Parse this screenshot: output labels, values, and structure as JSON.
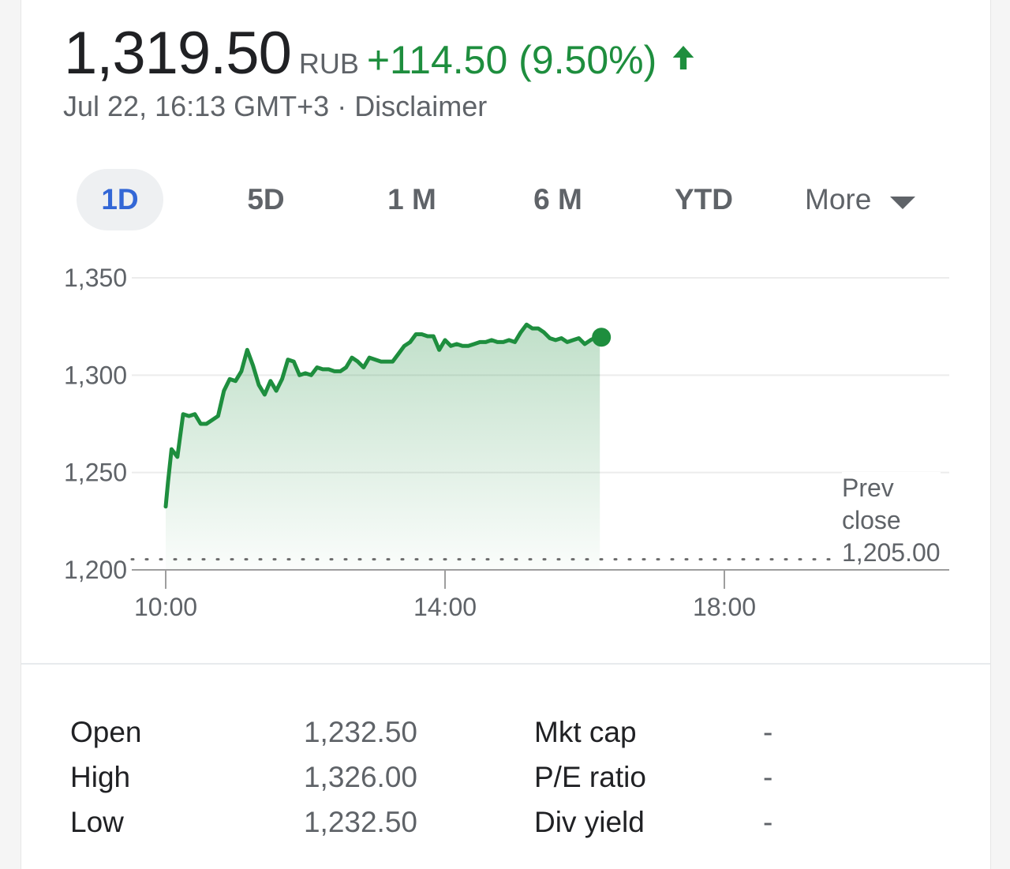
{
  "quote": {
    "price": "1,319.50",
    "currency": "RUB",
    "change": "+114.50 (9.50%)",
    "timestamp": "Jul 22, 16:13 GMT+3",
    "separator": " · ",
    "disclaimer": "Disclaimer",
    "trend_icon": "arrow-up-icon",
    "positive_color": "#1e8e3e"
  },
  "range_tabs": {
    "items": [
      "1D",
      "5D",
      "1 M",
      "6 M",
      "YTD"
    ],
    "active": "1D",
    "more_label": "More",
    "more_icon": "chevron-down-icon"
  },
  "chart_data": {
    "type": "area",
    "x_ticks": [
      "10:00",
      "14:00",
      "18:00"
    ],
    "y_ticks": [
      "1,350",
      "1,300",
      "1,250",
      "1,200"
    ],
    "y_tick_values": [
      1350,
      1300,
      1250,
      1200
    ],
    "ylim": [
      1200,
      1350
    ],
    "xlim": [
      "10:00",
      "20:00"
    ],
    "line_color": "#1e8e3e",
    "grid": true,
    "prev_close": 1205.0,
    "prev_close_label": [
      "Prev",
      "close",
      "1,205.00"
    ],
    "series": [
      {
        "x": [
          "10:00",
          "10:02",
          "10:05",
          "10:10",
          "10:15",
          "10:20",
          "10:25",
          "10:30",
          "10:35",
          "10:40",
          "10:45",
          "10:50",
          "10:55",
          "11:00",
          "11:05",
          "11:10",
          "11:15",
          "11:20",
          "11:25",
          "11:30",
          "11:35",
          "11:40",
          "11:45",
          "11:50",
          "11:55",
          "12:00",
          "12:05",
          "12:10",
          "12:15",
          "12:20",
          "12:25",
          "12:30",
          "12:35",
          "12:40",
          "12:45",
          "12:50",
          "12:55",
          "13:00",
          "13:05",
          "13:10",
          "13:15",
          "13:20",
          "13:25",
          "13:30",
          "13:35",
          "13:40",
          "13:45",
          "13:50",
          "13:55",
          "14:00",
          "14:05",
          "14:10",
          "14:15",
          "14:20",
          "14:25",
          "14:30",
          "14:35",
          "14:40",
          "14:45",
          "14:50",
          "14:55",
          "15:00",
          "15:05",
          "15:10",
          "15:15",
          "15:20",
          "15:25",
          "15:30",
          "15:35",
          "15:40",
          "15:45",
          "15:50",
          "15:55",
          "16:00",
          "16:05",
          "16:10",
          "16:13"
        ],
        "values": [
          1232.5,
          1245,
          1262,
          1258,
          1280,
          1279,
          1280,
          1275,
          1275,
          1277,
          1279,
          1292,
          1298,
          1297,
          1302,
          1313,
          1305,
          1295,
          1290,
          1297,
          1292,
          1298,
          1308,
          1307,
          1300,
          1301,
          1300,
          1304,
          1303,
          1303,
          1302,
          1302,
          1304,
          1309,
          1307,
          1304,
          1309,
          1308,
          1307,
          1307,
          1307,
          1311,
          1315,
          1317,
          1321,
          1321,
          1320,
          1320,
          1313,
          1318,
          1315,
          1316,
          1315,
          1315,
          1316,
          1317,
          1317,
          1318,
          1317,
          1317,
          1318,
          1317,
          1322,
          1326,
          1324,
          1324,
          1322,
          1319,
          1318,
          1319,
          1317,
          1318,
          1319,
          1316,
          1318,
          1319.5,
          1319.5
        ]
      }
    ]
  },
  "stats": {
    "rows": [
      {
        "label_l": "Open",
        "value_l": "1,232.50",
        "label_r": "Mkt cap",
        "value_r": "-"
      },
      {
        "label_l": "High",
        "value_l": "1,326.00",
        "label_r": "P/E ratio",
        "value_r": "-"
      },
      {
        "label_l": "Low",
        "value_l": "1,232.50",
        "label_r": "Div yield",
        "value_r": "-"
      }
    ]
  }
}
